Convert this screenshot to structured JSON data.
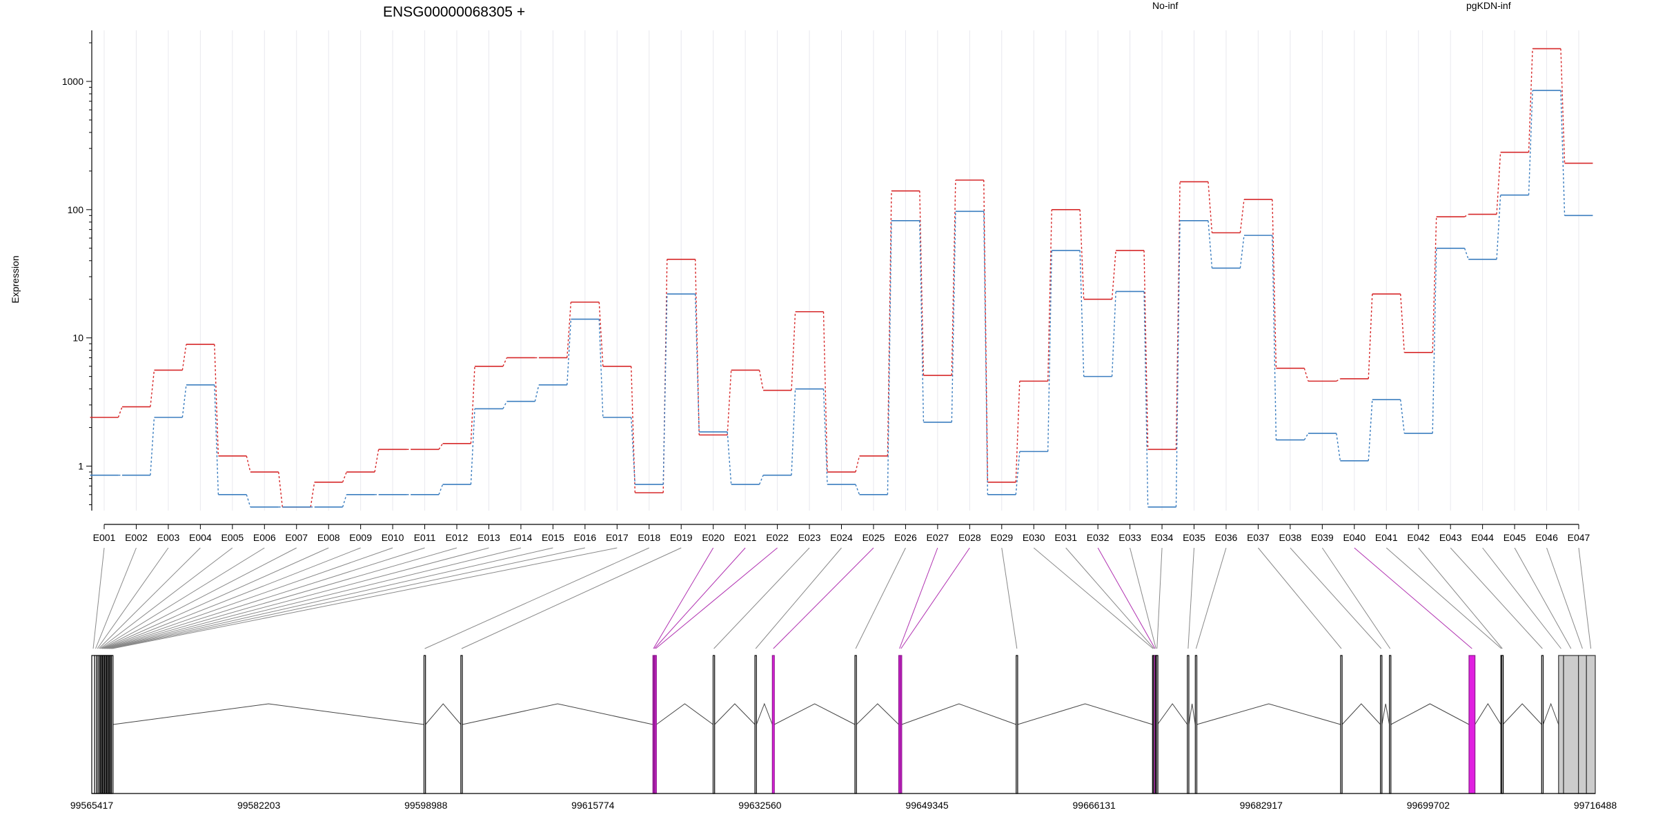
{
  "title": "ENSG00000068305 +",
  "colors": {
    "no_inf": "#d62728",
    "pgkdn_inf": "#3a7dbf",
    "highlight": "#e020e0",
    "highlight_dark": "#8b1a8b",
    "utr": "#cccccc"
  },
  "chart_data": {
    "type": "line",
    "ylabel": "Expression",
    "yscale": "log",
    "ylim": [
      0.45,
      2500
    ],
    "yticks": [
      1,
      10,
      100,
      1000
    ],
    "ytick_labels": [
      "1",
      "10",
      "100",
      "1000"
    ],
    "grid": "vertical",
    "categories": [
      "E001",
      "E002",
      "E003",
      "E004",
      "E005",
      "E006",
      "E007",
      "E008",
      "E009",
      "E010",
      "E011",
      "E012",
      "E013",
      "E014",
      "E015",
      "E016",
      "E017",
      "E018",
      "E019",
      "E020",
      "E021",
      "E022",
      "E023",
      "E024",
      "E025",
      "E026",
      "E027",
      "E028",
      "E029",
      "E030",
      "E031",
      "E032",
      "E033",
      "E034",
      "E035",
      "E036",
      "E037",
      "E038",
      "E039",
      "E040",
      "E041",
      "E042",
      "E043",
      "E044",
      "E045",
      "E046",
      "E047"
    ],
    "series": [
      {
        "name": "No-inf",
        "color": "#d62728",
        "values": [
          2.4,
          2.9,
          5.6,
          8.9,
          1.2,
          0.9,
          0.48,
          0.75,
          0.9,
          1.35,
          1.35,
          1.5,
          6.0,
          7.0,
          7.0,
          19,
          6.0,
          0.62,
          41,
          1.75,
          5.6,
          3.9,
          16,
          0.9,
          1.2,
          140,
          5.1,
          170,
          0.75,
          4.6,
          100,
          20,
          48,
          1.35,
          165,
          66,
          120,
          5.8,
          4.6,
          4.8,
          22,
          7.7,
          88,
          92,
          280,
          1800,
          230
        ]
      },
      {
        "name": "pgKDN-inf",
        "color": "#3a7dbf",
        "values": [
          0.85,
          0.85,
          2.4,
          4.3,
          0.6,
          0.48,
          0.48,
          0.48,
          0.6,
          0.6,
          0.6,
          0.72,
          2.8,
          3.2,
          4.3,
          14,
          2.4,
          0.72,
          22,
          1.85,
          0.72,
          0.85,
          4.0,
          0.72,
          0.6,
          82,
          2.2,
          97,
          0.6,
          1.3,
          48,
          5.0,
          23,
          0.48,
          82,
          35,
          63,
          1.6,
          1.8,
          1.1,
          3.3,
          1.8,
          50,
          41,
          130,
          850,
          90
        ]
      }
    ],
    "gene_model": {
      "coordinate_labels": [
        "99565417",
        "99582203",
        "99598988",
        "99615774",
        "99632560",
        "99649345",
        "99666131",
        "99682917",
        "99699702",
        "99716488"
      ],
      "coord_range": [
        99565417,
        99716488
      ],
      "exons": [
        {
          "id": "E001",
          "start": 99565417,
          "end": 99565700
        },
        {
          "id": "E002",
          "start": 99565700,
          "end": 99565900
        },
        {
          "id": "E003",
          "start": 99565900,
          "end": 99566050
        },
        {
          "id": "E004",
          "start": 99566050,
          "end": 99566200
        },
        {
          "id": "E005",
          "start": 99566200,
          "end": 99566300
        },
        {
          "id": "E006",
          "start": 99566300,
          "end": 99566400
        },
        {
          "id": "E007",
          "start": 99566400,
          "end": 99566500
        },
        {
          "id": "E008",
          "start": 99566500,
          "end": 99566600
        },
        {
          "id": "E009",
          "start": 99566600,
          "end": 99566700
        },
        {
          "id": "E010",
          "start": 99566700,
          "end": 99566800
        },
        {
          "id": "E011",
          "start": 99566800,
          "end": 99566900
        },
        {
          "id": "E012",
          "start": 99566900,
          "end": 99567000
        },
        {
          "id": "E013",
          "start": 99567000,
          "end": 99567100
        },
        {
          "id": "E014",
          "start": 99567100,
          "end": 99567200
        },
        {
          "id": "E015",
          "start": 99567200,
          "end": 99567300
        },
        {
          "id": "E016",
          "start": 99567300,
          "end": 99567400
        },
        {
          "id": "E017",
          "start": 99567400,
          "end": 99567550
        },
        {
          "id": "E018",
          "start": 99598800,
          "end": 99598950
        },
        {
          "id": "E019",
          "start": 99602500,
          "end": 99602650
        },
        {
          "id": "E020",
          "start": 99621800,
          "end": 99621900,
          "highlight": true
        },
        {
          "id": "E021",
          "start": 99621900,
          "end": 99622000,
          "highlight": true
        },
        {
          "id": "E022",
          "start": 99622000,
          "end": 99622150,
          "highlight": true
        },
        {
          "id": "E023",
          "start": 99627850,
          "end": 99628000
        },
        {
          "id": "E024",
          "start": 99632050,
          "end": 99632200
        },
        {
          "id": "E025",
          "start": 99633800,
          "end": 99634000,
          "highlight": true
        },
        {
          "id": "E026",
          "start": 99642100,
          "end": 99642250
        },
        {
          "id": "E027",
          "start": 99646500,
          "end": 99646650,
          "highlight": true
        },
        {
          "id": "E028",
          "start": 99646650,
          "end": 99646800,
          "highlight": true
        },
        {
          "id": "E029",
          "start": 99658300,
          "end": 99658450
        },
        {
          "id": "E030",
          "start": 99672000,
          "end": 99672100
        },
        {
          "id": "E031",
          "start": 99672100,
          "end": 99672200
        },
        {
          "id": "E032",
          "start": 99672200,
          "end": 99672300,
          "highlight": true
        },
        {
          "id": "E033",
          "start": 99672300,
          "end": 99672400
        },
        {
          "id": "E034",
          "start": 99672400,
          "end": 99672500
        },
        {
          "id": "E035",
          "start": 99675500,
          "end": 99675650
        },
        {
          "id": "E036",
          "start": 99676300,
          "end": 99676450
        },
        {
          "id": "E037",
          "start": 99690900,
          "end": 99691050
        },
        {
          "id": "E038",
          "start": 99694900,
          "end": 99695050
        },
        {
          "id": "E039",
          "start": 99695800,
          "end": 99695950
        },
        {
          "id": "E040",
          "start": 99703800,
          "end": 99704400,
          "highlight": true
        },
        {
          "id": "E041",
          "start": 99707000,
          "end": 99707100
        },
        {
          "id": "E042",
          "start": 99707100,
          "end": 99707200
        },
        {
          "id": "E043",
          "start": 99711100,
          "end": 99711250
        },
        {
          "id": "E044",
          "start": 99712800,
          "end": 99713300,
          "utr": true
        },
        {
          "id": "E045",
          "start": 99713300,
          "end": 99714800,
          "utr": true
        },
        {
          "id": "E046",
          "start": 99714800,
          "end": 99715600,
          "utr": true
        },
        {
          "id": "E047",
          "start": 99715600,
          "end": 99716488,
          "utr": true
        }
      ]
    }
  }
}
